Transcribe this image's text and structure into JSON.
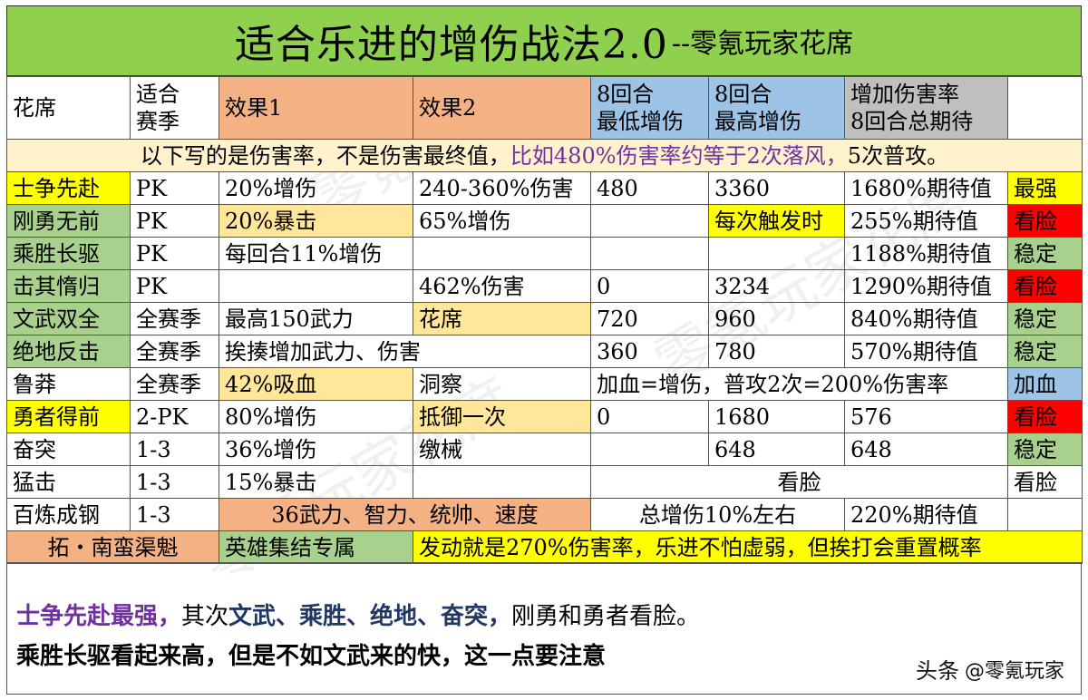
{
  "title": {
    "main": "适合乐进的增伤战法2.0",
    "sub": "--零氪玩家花席"
  },
  "header": [
    "花席",
    "适合赛季",
    "效果1",
    "效果2",
    "8回合最低增伤",
    "8回合最高增伤",
    "增加伤害率8回合总期待",
    ""
  ],
  "note": {
    "part1": "以下写的是伤害率，不是伤害最终值，",
    "part2": "比如480%伤害率约等于2次落风，",
    "part3": "5次普攻。"
  },
  "rows": {
    "r1": {
      "name": "士争先赴",
      "season": "PK",
      "e1": "20%增伤",
      "e2": "240-360%伤害",
      "min": "480",
      "max": "3360",
      "total": "1680%期待值",
      "tag": "最强"
    },
    "r2": {
      "name": "刚勇无前",
      "season": "PK",
      "e1": "20%暴击",
      "e2": "65%增伤",
      "min": "",
      "max": "每次触发时",
      "total": "255%期待值",
      "tag": "看脸"
    },
    "r3": {
      "name": "乘胜长驱",
      "season": "PK",
      "e1": "每回合11%增伤",
      "e2": "",
      "min": "",
      "max": "",
      "total": "1188%期待值",
      "tag": "稳定"
    },
    "r4": {
      "name": "击其惰归",
      "season": "PK",
      "e1": "",
      "e2": "462%伤害",
      "min": "0",
      "max": "3234",
      "total": "1290%期待值",
      "tag": "看脸"
    },
    "r5": {
      "name": "文武双全",
      "season": "全赛季",
      "e1": "最高150武力",
      "e2": "花席",
      "min": "720",
      "max": "960",
      "total": "840%期待值",
      "tag": "稳定"
    },
    "r6": {
      "name": "绝地反击",
      "season": "全赛季",
      "e1": "挨揍增加武力、伤害",
      "min": "360",
      "max": "780",
      "total": "570%期待值",
      "tag": "稳定"
    },
    "r7": {
      "name": "鲁莽",
      "season": "全赛季",
      "e1": "42%吸血",
      "e2": "洞察",
      "merged": "加血=增伤，普攻2次=200%伤害率",
      "tag": "加血"
    },
    "r8": {
      "name": "勇者得前",
      "season": "2-PK",
      "e1": "80%增伤",
      "e2": "抵御一次",
      "min": "0",
      "max": "1680",
      "total": "576",
      "tag": "看脸"
    },
    "r9": {
      "name": "奋突",
      "season": "1-3",
      "e1": "36%增伤",
      "e2": "缴械",
      "min": "",
      "max": "648",
      "total": "648",
      "tag": "稳定"
    },
    "r10": {
      "name": "猛击",
      "season": "1-3",
      "e1": "15%暴击",
      "e2": "",
      "merged": "看脸",
      "tag": "看脸"
    },
    "r11": {
      "name": "百炼成钢",
      "season": "1-3",
      "e1": "36武力、智力、统帅、速度",
      "merged": "总增伤10%左右",
      "total": "220%期待值",
      "tag": ""
    },
    "r12": {
      "name": "拓・南蛮渠魁",
      "season": "英雄集结专属",
      "merged": "发动就是270%伤害率，乐进不怕虚弱，但挨打会重置概率"
    }
  },
  "summary": {
    "line1_a": "士争先赴最强，",
    "line1_b": "其次",
    "line1_c": "文武、乘胜、绝地、奋突，",
    "line1_d": "刚勇和勇者看脸。",
    "line2": "乘胜长驱看起来高，但是不如文武来的快，这一点要注意"
  },
  "watermark": {
    "logo": "头条",
    "text": "@零氪玩家"
  },
  "colors": {
    "green": "#a9d18e",
    "title_green": "#8fd14f",
    "yellow": "#ffff00",
    "orange": "#f4b183",
    "light_orange": "#ffe699",
    "blue": "#9dc3e6",
    "gray": "#bfbfbf",
    "red": "#ff0000",
    "note_bg": "#fff2cc",
    "purple": "#7030a0"
  }
}
